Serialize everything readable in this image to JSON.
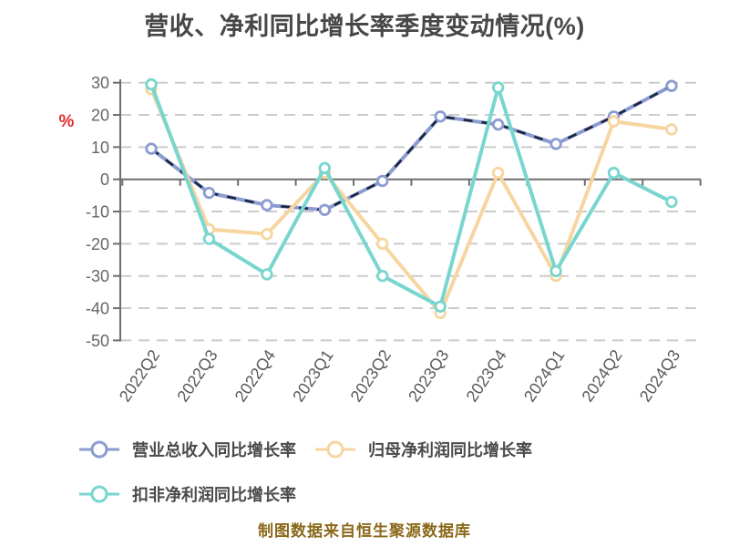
{
  "chart_data": {
    "type": "line",
    "title": "营收、净利同比增长率季度变动情况(%)",
    "ylabel": "%",
    "xlabel": "",
    "categories": [
      "2022Q2",
      "2022Q3",
      "2022Q4",
      "2023Q1",
      "2023Q2",
      "2023Q3",
      "2023Q4",
      "2024Q1",
      "2024Q2",
      "2024Q3"
    ],
    "series": [
      {
        "name": "营业总收入同比增长率",
        "color": "#8B9CD0",
        "overlay_dash_color": "#1C2440",
        "values": [
          9.5,
          -4.2,
          -8,
          -9.5,
          -0.5,
          19.5,
          17,
          11,
          19.5,
          29
        ]
      },
      {
        "name": "归母净利润同比增长率",
        "color": "#F7D5A0",
        "values": [
          28,
          -15.5,
          -17,
          2,
          -20,
          -41.5,
          2,
          -30,
          18,
          15.5
        ]
      },
      {
        "name": "扣非净利润同比增长率",
        "color": "#78D6CE",
        "values": [
          29.5,
          -18.5,
          -29.5,
          3.5,
          -30,
          -39.5,
          28.5,
          -28.5,
          2,
          -7
        ]
      }
    ],
    "ylim": [
      -50,
      30
    ],
    "yticks": [
      30,
      20,
      10,
      0,
      -10,
      -20,
      -30,
      -40,
      -50
    ],
    "grid": "dashed-horizontal",
    "legend_position": "bottom-left",
    "marker": "circle-white-fill"
  },
  "footer": {
    "text": "制图数据来自恒生聚源数据库",
    "color": "#8A681A"
  },
  "colors": {
    "axis": "#6E6E6E",
    "grid": "#CBCBCB",
    "y_tick_label": "#666666",
    "x_tick_label": "#5A5A5A",
    "title": "#474747",
    "legend_text": "#4A4A4A",
    "unit_label": "#E12B2B",
    "marker_fill": "#FFFFFF",
    "background": "#FFFFFF"
  }
}
